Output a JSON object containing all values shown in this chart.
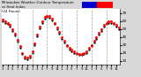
{
  "title": "Milwaukee Weather Outdoor Temperature",
  "title2": "vs Heat Index",
  "title3": "(24 Hours)",
  "bg_color": "#d8d8d8",
  "plot_bg": "#ffffff",
  "temp_color": "#ff0000",
  "heat_color": "#000000",
  "legend_blue": "#0000cc",
  "legend_red": "#ff0000",
  "hours": [
    0,
    1,
    2,
    3,
    4,
    5,
    6,
    7,
    8,
    9,
    10,
    11,
    12,
    13,
    14,
    15,
    16,
    17,
    18,
    19,
    20,
    21,
    22,
    23,
    24,
    25,
    26,
    27,
    28,
    29,
    30,
    31,
    32,
    33,
    34,
    35,
    36,
    37,
    38,
    39,
    40,
    41,
    42,
    43,
    44,
    45,
    46,
    47
  ],
  "temp_values": [
    62,
    60,
    58,
    55,
    50,
    44,
    36,
    28,
    20,
    15,
    14,
    16,
    22,
    32,
    43,
    53,
    60,
    65,
    67,
    66,
    63,
    58,
    52,
    46,
    40,
    35,
    30,
    26,
    24,
    22,
    20,
    19,
    19,
    20,
    22,
    26,
    30,
    35,
    40,
    45,
    50,
    55,
    58,
    60,
    60,
    58,
    55,
    52
  ],
  "heat_values": [
    60,
    58,
    56,
    53,
    48,
    42,
    34,
    26,
    18,
    13,
    12,
    14,
    20,
    30,
    41,
    51,
    58,
    63,
    65,
    64,
    61,
    56,
    50,
    44,
    38,
    33,
    28,
    24,
    22,
    20,
    18,
    17,
    17,
    18,
    20,
    24,
    28,
    33,
    38,
    43,
    48,
    53,
    56,
    58,
    58,
    56,
    53,
    50
  ],
  "ylim": [
    5,
    75
  ],
  "yticks": [
    10,
    20,
    30,
    40,
    50,
    60,
    70
  ],
  "grid_color": "#999999",
  "grid_positions": [
    6,
    12,
    18,
    24,
    30,
    36,
    42
  ],
  "xtick_positions": [
    0,
    2,
    4,
    6,
    8,
    10,
    12,
    14,
    16,
    18,
    20,
    22,
    24,
    26,
    28,
    30,
    32,
    34,
    36,
    38,
    40,
    42,
    44,
    46
  ],
  "xtick_labels": [
    "1",
    "3",
    "5",
    "7",
    "9",
    "11",
    "1",
    "3",
    "5",
    "7",
    "9",
    "11",
    "1",
    "3",
    "5",
    "7",
    "9",
    "11",
    "1",
    "3",
    "5",
    "7",
    "9",
    "11"
  ]
}
